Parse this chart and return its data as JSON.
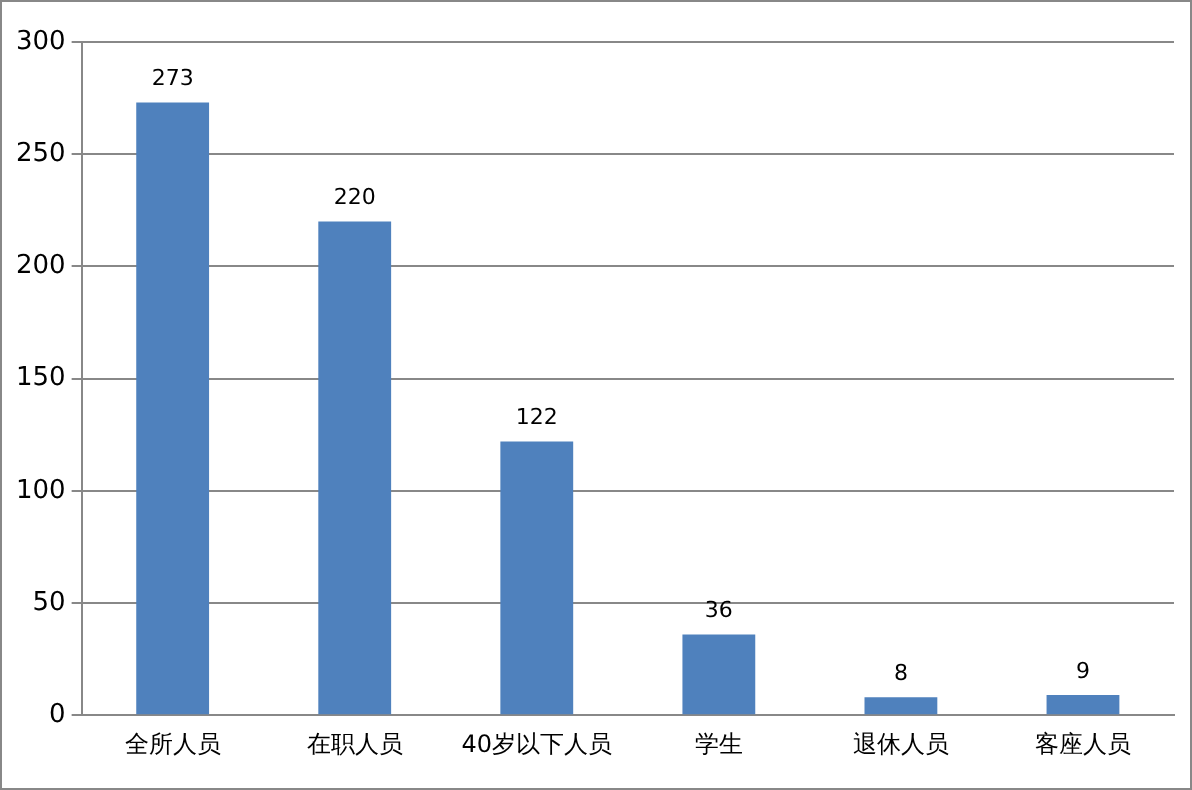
{
  "chart_data": {
    "type": "bar",
    "categories": [
      "全所人员",
      "在职人员",
      "40岁以下人员",
      "学生",
      "退休人员",
      "客座人员"
    ],
    "values": [
      273,
      220,
      122,
      36,
      8,
      9
    ],
    "color": "#4f81bd",
    "ylim": [
      0,
      300
    ],
    "yticks": [
      0,
      50,
      100,
      150,
      200,
      250,
      300
    ],
    "grid": "y",
    "data_labels": true
  }
}
